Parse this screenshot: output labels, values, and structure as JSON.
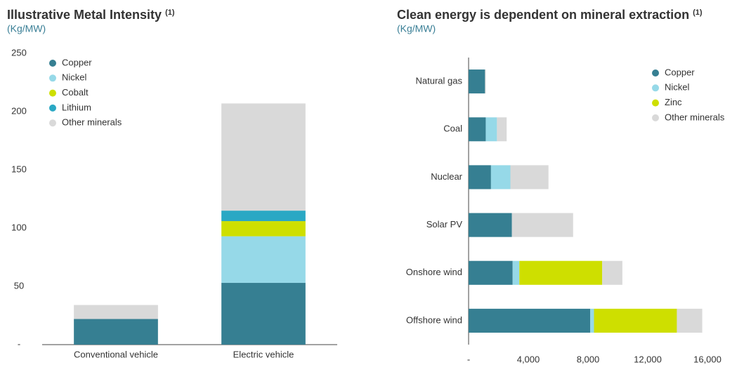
{
  "chart_data": [
    {
      "type": "bar",
      "orientation": "vertical",
      "title": "Illustrative Metal Intensity",
      "title_note": "(1)",
      "subtitle": "(Kg/MW)",
      "categories": [
        "Conventional vehicle",
        "Electric vehicle"
      ],
      "series": [
        {
          "name": "Copper",
          "color": "#367f92",
          "values": [
            22,
            53
          ]
        },
        {
          "name": "Nickel",
          "color": "#96d9e8",
          "values": [
            0,
            40
          ]
        },
        {
          "name": "Cobalt",
          "color": "#cedf00",
          "values": [
            0,
            13
          ]
        },
        {
          "name": "Lithium",
          "color": "#2aa8c4",
          "values": [
            0,
            9
          ]
        },
        {
          "name": "Other minerals",
          "color": "#d9d9d9",
          "values": [
            12,
            92
          ]
        }
      ],
      "ylim": [
        0,
        250
      ],
      "yticks": [
        {
          "value": 0,
          "label": "-"
        },
        50,
        100,
        150,
        200,
        250
      ],
      "stacked": true,
      "legend": "upper left"
    },
    {
      "type": "bar",
      "orientation": "horizontal",
      "title": "Clean energy is dependent on mineral extraction",
      "title_note": "(1)",
      "subtitle": "(Kg/MW)",
      "categories": [
        "Natural gas",
        "Coal",
        "Nuclear",
        "Solar PV",
        "Onshore wind",
        "Offshore wind"
      ],
      "series": [
        {
          "name": "Copper",
          "color": "#367f92",
          "values": [
            1100,
            1150,
            1500,
            2900,
            2950,
            8150
          ]
        },
        {
          "name": "Nickel",
          "color": "#96d9e8",
          "values": [
            0,
            750,
            1300,
            0,
            450,
            250
          ]
        },
        {
          "name": "Zinc",
          "color": "#cedf00",
          "values": [
            0,
            0,
            0,
            0,
            5550,
            5550
          ]
        },
        {
          "name": "Other minerals",
          "color": "#d9d9d9",
          "values": [
            50,
            650,
            2550,
            4100,
            1350,
            1700
          ]
        }
      ],
      "xlim": [
        0,
        16000
      ],
      "xticks": [
        {
          "value": 0,
          "label": "-"
        },
        {
          "value": 4000,
          "label": "4,000"
        },
        {
          "value": 8000,
          "label": "8,000"
        },
        {
          "value": 12000,
          "label": "12,000"
        },
        {
          "value": 16000,
          "label": "16,000"
        }
      ],
      "stacked": true,
      "legend": "upper right"
    }
  ]
}
